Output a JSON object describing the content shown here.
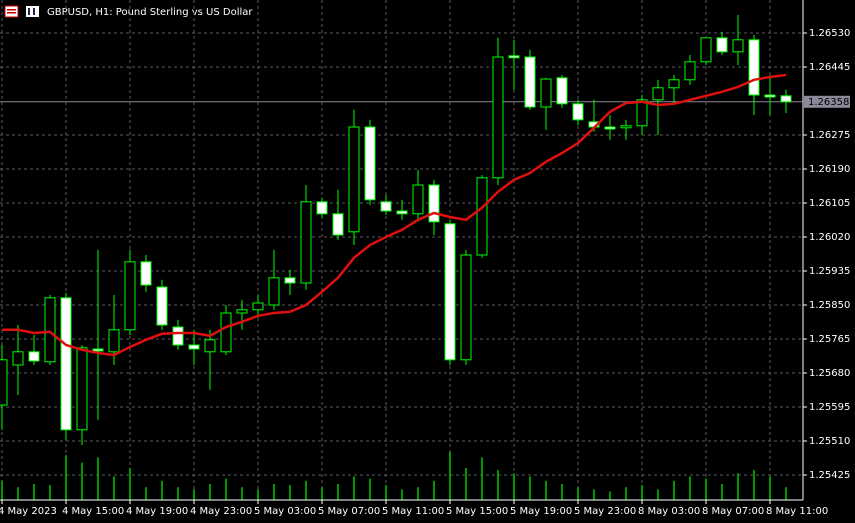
{
  "chart_data": {
    "type": "candlestick",
    "title": "GBPUSD, H1:  Pound Sterling vs US Dollar",
    "categories": [
      "4 May 2023",
      null,
      null,
      null,
      "4 May 15:00",
      null,
      null,
      null,
      "4 May 19:00",
      null,
      null,
      null,
      "4 May 23:00",
      null,
      null,
      null,
      "5 May 03:00",
      null,
      null,
      null,
      "5 May 07:00",
      null,
      null,
      null,
      "5 May 11:00",
      null,
      null,
      null,
      "5 May 15:00",
      null,
      null,
      null,
      "5 May 19:00",
      null,
      null,
      null,
      "5 May 23:00",
      null,
      null,
      null,
      "8 May 03:00",
      null,
      null,
      null,
      "8 May 07:00",
      null,
      null,
      null,
      "8 May 11:00",
      null
    ],
    "open": [
      1.256,
      1.257,
      1.25733,
      1.25708,
      1.25868,
      1.25538,
      1.2574,
      1.25733,
      1.25788,
      1.25958,
      1.25895,
      1.25795,
      1.2575,
      1.25733,
      1.25733,
      1.2583,
      1.25838,
      1.2585,
      1.25918,
      1.25905,
      1.26108,
      1.26078,
      1.26033,
      1.26295,
      1.26108,
      1.26085,
      1.26078,
      1.2615,
      1.26053,
      1.25713,
      1.25975,
      1.26168,
      1.26473,
      1.2647,
      1.26345,
      1.26418,
      1.26353,
      1.26308,
      1.26295,
      1.26293,
      1.26298,
      1.26363,
      1.26393,
      1.26413,
      1.26458,
      1.26518,
      1.26483,
      1.26513,
      1.26375,
      1.26373
    ],
    "high": [
      1.2575,
      1.258,
      1.25775,
      1.25875,
      1.2588,
      1.2575,
      1.25988,
      1.25875,
      1.25988,
      1.25975,
      1.25913,
      1.25813,
      1.25788,
      1.25788,
      1.2585,
      1.25863,
      1.25875,
      1.25988,
      1.25938,
      1.2615,
      1.26118,
      1.26138,
      1.26338,
      1.26313,
      1.26125,
      1.26113,
      1.26188,
      1.26163,
      1.26063,
      1.25988,
      1.26175,
      1.26518,
      1.26513,
      1.26488,
      1.26418,
      1.26425,
      1.26363,
      1.26363,
      1.26325,
      1.26313,
      1.26375,
      1.26413,
      1.26425,
      1.26475,
      1.26518,
      1.26533,
      1.26575,
      1.26525,
      1.26425,
      1.26388
    ],
    "low": [
      1.25538,
      1.25625,
      1.257,
      1.257,
      1.25513,
      1.255,
      1.25563,
      1.257,
      1.25775,
      1.25883,
      1.25788,
      1.25738,
      1.257,
      1.25638,
      1.25725,
      1.25788,
      1.25818,
      1.25838,
      1.25875,
      1.25888,
      1.26068,
      1.26013,
      1.26,
      1.261,
      1.26075,
      1.26063,
      1.26058,
      1.26025,
      1.257,
      1.257,
      1.25968,
      1.2615,
      1.26388,
      1.26338,
      1.26288,
      1.26343,
      1.263,
      1.26283,
      1.26263,
      1.26263,
      1.26275,
      1.26275,
      1.2635,
      1.264,
      1.2645,
      1.26475,
      1.2645,
      1.26325,
      1.26325,
      1.2633
    ],
    "close": [
      1.25713,
      1.25733,
      1.2571,
      1.25868,
      1.25538,
      1.25743,
      1.25735,
      1.25788,
      1.25958,
      1.259,
      1.258,
      1.2575,
      1.2574,
      1.25763,
      1.2583,
      1.25838,
      1.25855,
      1.25918,
      1.25905,
      1.26108,
      1.26078,
      1.26025,
      1.26295,
      1.26113,
      1.26085,
      1.26078,
      1.2615,
      1.26058,
      1.25713,
      1.25975,
      1.26168,
      1.2647,
      1.26468,
      1.26345,
      1.26415,
      1.26353,
      1.26313,
      1.26295,
      1.2629,
      1.26298,
      1.26363,
      1.26393,
      1.26413,
      1.26458,
      1.26518,
      1.26483,
      1.26513,
      1.26375,
      1.2637,
      1.26358
    ],
    "moving_average": {
      "color": "#e01010",
      "values": [
        1.25788,
        1.25788,
        1.2578,
        1.25783,
        1.2575,
        1.25738,
        1.2573,
        1.25725,
        1.25745,
        1.25763,
        1.25778,
        1.2578,
        1.2578,
        1.25773,
        1.25795,
        1.25808,
        1.25823,
        1.2583,
        1.25833,
        1.2585,
        1.25883,
        1.25918,
        1.25968,
        1.26,
        1.2602,
        1.26038,
        1.26063,
        1.2608,
        1.2607,
        1.26063,
        1.26093,
        1.26133,
        1.26163,
        1.2618,
        1.26208,
        1.2623,
        1.26255,
        1.26293,
        1.26333,
        1.26355,
        1.26358,
        1.2635,
        1.26353,
        1.26363,
        1.26373,
        1.26383,
        1.26395,
        1.26413,
        1.2642,
        1.26425
      ]
    },
    "volumes": [
      18,
      12,
      15,
      14,
      42,
      35,
      40,
      22,
      30,
      12,
      18,
      12,
      10,
      15,
      20,
      12,
      10,
      15,
      14,
      18,
      12,
      15,
      22,
      20,
      14,
      10,
      12,
      18,
      45,
      30,
      40,
      28,
      25,
      22,
      18,
      15,
      12,
      10,
      8,
      12,
      14,
      10,
      18,
      22,
      20,
      15,
      25,
      28,
      22,
      12
    ],
    "candle_color": "#00ff00",
    "bull_fill": "#000000",
    "bear_fill": "#ffffff",
    "volume_color": "#00c800",
    "current_price": 1.26358,
    "ylim": [
      1.253625,
      1.266125
    ],
    "yticks": [
      {
        "value": 1.2653,
        "label": "1.26530"
      },
      1.26445,
      1.26275,
      {
        "value": 1.2619,
        "label": "1.26190"
      },
      1.26105,
      {
        "value": 1.2602,
        "label": "1.26020"
      },
      1.25935,
      {
        "value": 1.2585,
        "label": "1.25850"
      },
      1.25765,
      {
        "value": 1.2568,
        "label": "1.25680"
      },
      1.25595,
      {
        "value": 1.2551,
        "label": "1.25510"
      },
      1.25425
    ],
    "grid": true
  }
}
